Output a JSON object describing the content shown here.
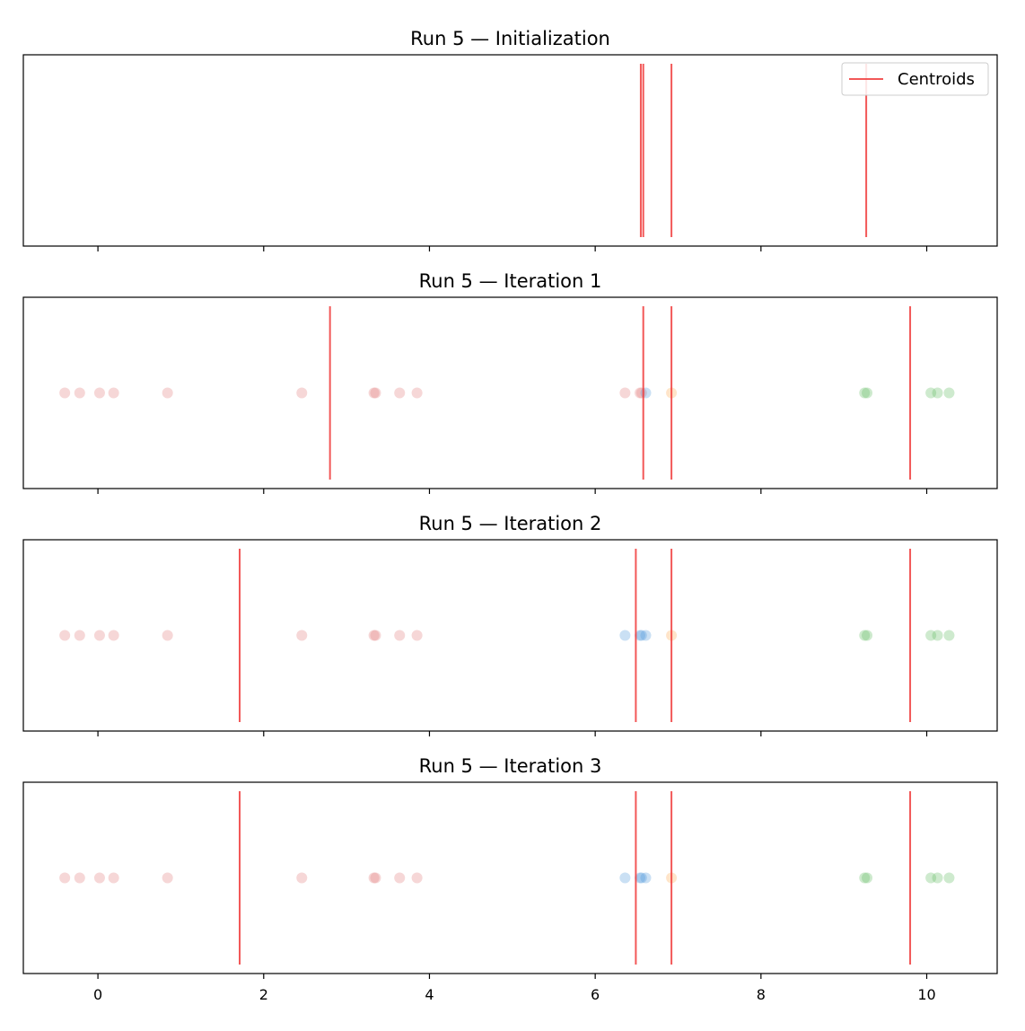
{
  "colors": {
    "centroid": "#f03b3b",
    "cluster_0": "#e07a7a",
    "cluster_1": "#4f97d9",
    "cluster_2": "#ffa64d",
    "cluster_3": "#5cb85c",
    "frame": "#000000"
  },
  "chart_data": {
    "type": "scatter",
    "shared_x_axis": true,
    "xlim": [
      -0.9,
      10.85
    ],
    "xticks": [
      0,
      2,
      4,
      6,
      8,
      10
    ],
    "xtick_labels": [
      "0",
      "2",
      "4",
      "6",
      "8",
      "10"
    ],
    "y_axis_visible": false,
    "legend": {
      "location": "top-right",
      "entries": [
        "Centroids"
      ]
    },
    "panels": [
      {
        "title": "Run 5  — Initialization",
        "centroids": [
          6.55,
          6.58,
          6.92,
          9.27
        ],
        "points": [],
        "show_legend": true
      },
      {
        "title": "Run 5  — Iteration 1",
        "centroids": [
          2.8,
          6.58,
          6.92,
          9.8
        ],
        "points": [
          {
            "x": -0.4,
            "cluster": 0
          },
          {
            "x": -0.22,
            "cluster": 0
          },
          {
            "x": 0.02,
            "cluster": 0
          },
          {
            "x": 0.19,
            "cluster": 0
          },
          {
            "x": 0.84,
            "cluster": 0
          },
          {
            "x": 2.46,
            "cluster": 0
          },
          {
            "x": 3.33,
            "cluster": 0
          },
          {
            "x": 3.35,
            "cluster": 0
          },
          {
            "x": 3.64,
            "cluster": 0
          },
          {
            "x": 3.85,
            "cluster": 0
          },
          {
            "x": 6.36,
            "cluster": 0
          },
          {
            "x": 6.54,
            "cluster": 0
          },
          {
            "x": 6.56,
            "cluster": 0
          },
          {
            "x": 6.61,
            "cluster": 1
          },
          {
            "x": 6.92,
            "cluster": 2
          },
          {
            "x": 9.25,
            "cluster": 3
          },
          {
            "x": 9.28,
            "cluster": 3
          },
          {
            "x": 10.05,
            "cluster": 3
          },
          {
            "x": 10.13,
            "cluster": 3
          },
          {
            "x": 10.27,
            "cluster": 3
          }
        ],
        "show_legend": false
      },
      {
        "title": "Run 5  — Iteration 2",
        "centroids": [
          1.71,
          6.49,
          6.92,
          9.8
        ],
        "points": [
          {
            "x": -0.4,
            "cluster": 0
          },
          {
            "x": -0.22,
            "cluster": 0
          },
          {
            "x": 0.02,
            "cluster": 0
          },
          {
            "x": 0.19,
            "cluster": 0
          },
          {
            "x": 0.84,
            "cluster": 0
          },
          {
            "x": 2.46,
            "cluster": 0
          },
          {
            "x": 3.33,
            "cluster": 0
          },
          {
            "x": 3.35,
            "cluster": 0
          },
          {
            "x": 3.64,
            "cluster": 0
          },
          {
            "x": 3.85,
            "cluster": 0
          },
          {
            "x": 6.36,
            "cluster": 1
          },
          {
            "x": 6.54,
            "cluster": 1
          },
          {
            "x": 6.56,
            "cluster": 1
          },
          {
            "x": 6.61,
            "cluster": 1
          },
          {
            "x": 6.92,
            "cluster": 2
          },
          {
            "x": 9.25,
            "cluster": 3
          },
          {
            "x": 9.28,
            "cluster": 3
          },
          {
            "x": 10.05,
            "cluster": 3
          },
          {
            "x": 10.13,
            "cluster": 3
          },
          {
            "x": 10.27,
            "cluster": 3
          }
        ],
        "show_legend": false
      },
      {
        "title": "Run 5  — Iteration 3",
        "centroids": [
          1.71,
          6.49,
          6.92,
          9.8
        ],
        "points": [
          {
            "x": -0.4,
            "cluster": 0
          },
          {
            "x": -0.22,
            "cluster": 0
          },
          {
            "x": 0.02,
            "cluster": 0
          },
          {
            "x": 0.19,
            "cluster": 0
          },
          {
            "x": 0.84,
            "cluster": 0
          },
          {
            "x": 2.46,
            "cluster": 0
          },
          {
            "x": 3.33,
            "cluster": 0
          },
          {
            "x": 3.35,
            "cluster": 0
          },
          {
            "x": 3.64,
            "cluster": 0
          },
          {
            "x": 3.85,
            "cluster": 0
          },
          {
            "x": 6.36,
            "cluster": 1
          },
          {
            "x": 6.54,
            "cluster": 1
          },
          {
            "x": 6.56,
            "cluster": 1
          },
          {
            "x": 6.61,
            "cluster": 1
          },
          {
            "x": 6.92,
            "cluster": 2
          },
          {
            "x": 9.25,
            "cluster": 3
          },
          {
            "x": 9.28,
            "cluster": 3
          },
          {
            "x": 10.05,
            "cluster": 3
          },
          {
            "x": 10.13,
            "cluster": 3
          },
          {
            "x": 10.27,
            "cluster": 3
          }
        ],
        "show_legend": false
      }
    ]
  }
}
